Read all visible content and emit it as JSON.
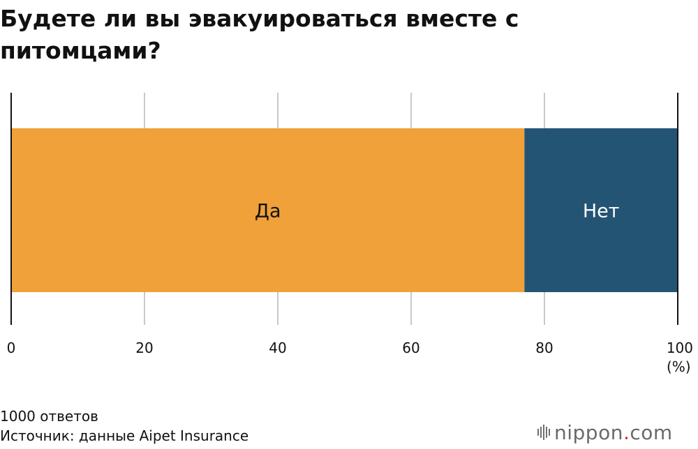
{
  "title": "Будете ли вы эвакуироваться вместе с питомцами?",
  "notes": {
    "sample": "1000 ответов",
    "source": "Источник: данные Aipet Insurance"
  },
  "brand": {
    "name": "nippon",
    "dot": ".",
    "suffix": "com"
  },
  "colors": {
    "yes": "#f0a13a",
    "no": "#245474",
    "grid": "#c8c8c8",
    "axis": "#111111"
  },
  "chart_data": {
    "type": "bar",
    "orientation": "horizontal-stacked",
    "xlim": [
      0,
      100
    ],
    "ticks": [
      0,
      20,
      40,
      60,
      80,
      100
    ],
    "unit": "(%)",
    "grid": true,
    "series": [
      {
        "name": "Да",
        "value": 77,
        "color": "#f0a13a",
        "label_color": "#111111"
      },
      {
        "name": "Нет",
        "value": 23,
        "color": "#245474",
        "label_color": "#ffffff"
      }
    ]
  }
}
